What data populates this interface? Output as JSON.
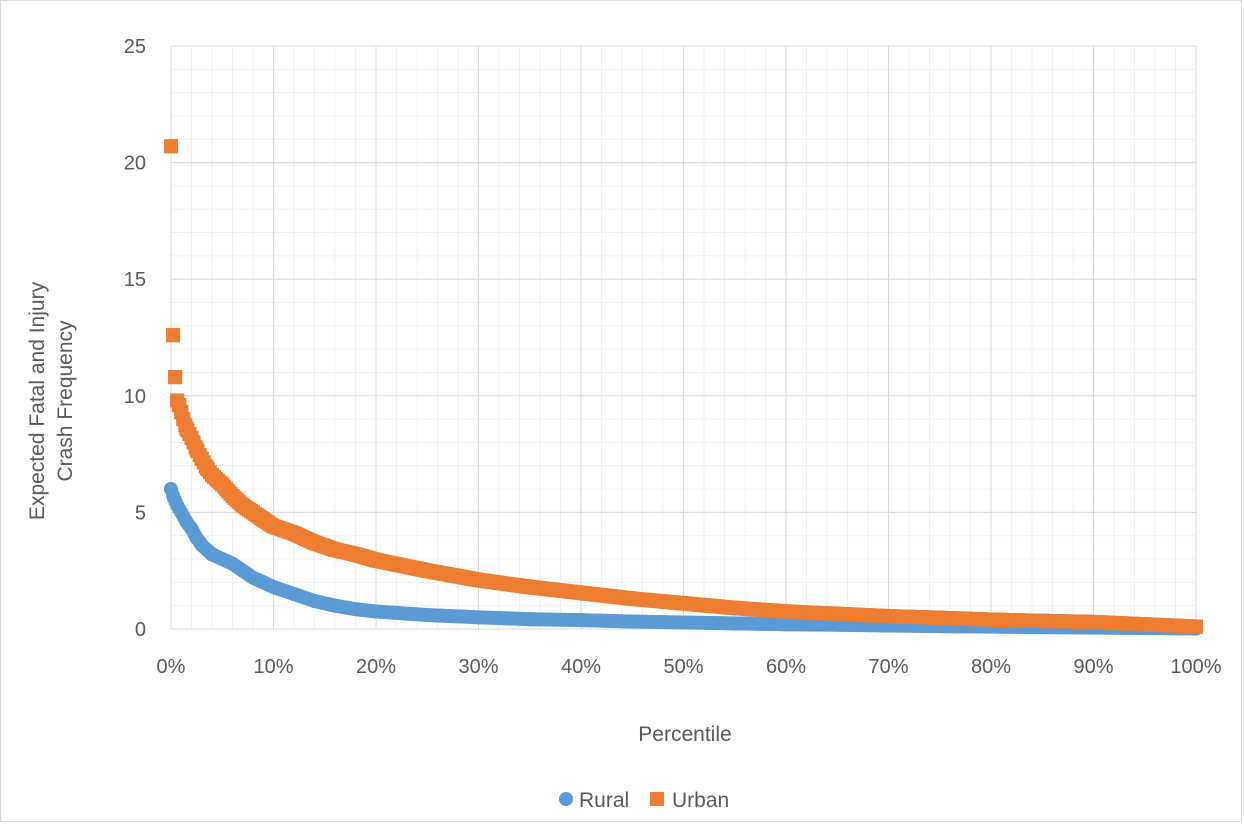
{
  "chart_data": {
    "type": "scatter",
    "title": "",
    "xlabel": "Percentile",
    "ylabel_lines": [
      "Expected Fatal and Injury",
      "Crash Frequency"
    ],
    "xlim": [
      0,
      1
    ],
    "ylim": [
      0,
      25
    ],
    "x_ticks": [
      0,
      0.1,
      0.2,
      0.3,
      0.4,
      0.5,
      0.6,
      0.7,
      0.8,
      0.9,
      1.0
    ],
    "x_tick_labels": [
      "0%",
      "10%",
      "20%",
      "30%",
      "40%",
      "50%",
      "60%",
      "70%",
      "80%",
      "90%",
      "100%"
    ],
    "y_ticks": [
      0,
      5,
      10,
      15,
      20,
      25
    ],
    "y_tick_labels": [
      "0",
      "5",
      "10",
      "15",
      "20",
      "25"
    ],
    "grid": true,
    "minor_grid": true,
    "legend_position": "bottom",
    "series": [
      {
        "name": "Rural",
        "marker": "circle",
        "color": "#5b9bd5",
        "x": [
          0.0,
          0.003,
          0.006,
          0.01,
          0.015,
          0.02,
          0.025,
          0.03,
          0.035,
          0.04,
          0.05,
          0.06,
          0.07,
          0.08,
          0.09,
          0.1,
          0.12,
          0.14,
          0.16,
          0.18,
          0.2,
          0.25,
          0.3,
          0.35,
          0.4,
          0.45,
          0.5,
          0.55,
          0.6,
          0.65,
          0.7,
          0.75,
          0.8,
          0.85,
          0.9,
          0.95,
          1.0
        ],
        "y": [
          6.0,
          5.6,
          5.3,
          5.0,
          4.6,
          4.3,
          3.9,
          3.6,
          3.4,
          3.2,
          3.0,
          2.8,
          2.5,
          2.2,
          2.0,
          1.8,
          1.5,
          1.2,
          1.0,
          0.85,
          0.75,
          0.6,
          0.5,
          0.42,
          0.38,
          0.32,
          0.28,
          0.24,
          0.2,
          0.18,
          0.15,
          0.12,
          0.1,
          0.08,
          0.06,
          0.04,
          0.02
        ]
      },
      {
        "name": "Urban",
        "marker": "square",
        "color": "#ed7d31",
        "x": [
          0.0,
          0.002,
          0.004,
          0.006,
          0.008,
          0.01,
          0.012,
          0.015,
          0.02,
          0.025,
          0.03,
          0.035,
          0.04,
          0.05,
          0.06,
          0.07,
          0.08,
          0.09,
          0.1,
          0.12,
          0.14,
          0.16,
          0.18,
          0.2,
          0.25,
          0.3,
          0.35,
          0.4,
          0.45,
          0.5,
          0.55,
          0.6,
          0.65,
          0.7,
          0.75,
          0.8,
          0.85,
          0.9,
          0.95,
          1.0
        ],
        "y": [
          20.7,
          12.6,
          10.8,
          9.8,
          9.6,
          9.3,
          9.0,
          8.6,
          8.2,
          7.7,
          7.3,
          6.9,
          6.6,
          6.2,
          5.7,
          5.3,
          5.0,
          4.7,
          4.4,
          4.1,
          3.7,
          3.4,
          3.2,
          2.95,
          2.5,
          2.1,
          1.8,
          1.55,
          1.3,
          1.1,
          0.9,
          0.75,
          0.65,
          0.55,
          0.48,
          0.4,
          0.35,
          0.3,
          0.2,
          0.1
        ]
      }
    ]
  }
}
